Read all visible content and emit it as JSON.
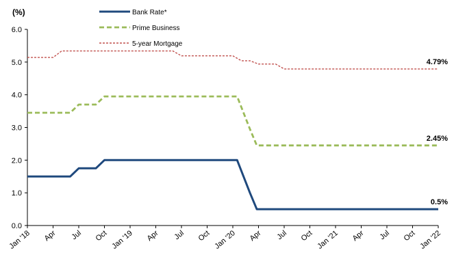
{
  "chart_data": {
    "type": "line",
    "ylabel": "(%)",
    "ylim": [
      0,
      6
    ],
    "yticks": [
      "0.0",
      "1.0",
      "2.0",
      "3.0",
      "4.0",
      "5.0",
      "6.0"
    ],
    "xlim": [
      0,
      48
    ],
    "xticks": [
      {
        "label": "Jan '18",
        "x": 0
      },
      {
        "label": "Apr",
        "x": 3
      },
      {
        "label": "Jul",
        "x": 6
      },
      {
        "label": "Oct",
        "x": 9
      },
      {
        "label": "Jan '19",
        "x": 12
      },
      {
        "label": "Apr",
        "x": 15
      },
      {
        "label": "Jul",
        "x": 18
      },
      {
        "label": "Oct",
        "x": 21
      },
      {
        "label": "Jan '20",
        "x": 24
      },
      {
        "label": "Apr",
        "x": 27
      },
      {
        "label": "Jul",
        "x": 30
      },
      {
        "label": "Oct",
        "x": 33
      },
      {
        "label": "Jan '21",
        "x": 36
      },
      {
        "label": "Apr",
        "x": 39
      },
      {
        "label": "Jul",
        "x": 42
      },
      {
        "label": "Oct",
        "x": 45
      },
      {
        "label": "Jan '22",
        "x": 48
      }
    ],
    "grid": false,
    "legend_position": "top-center",
    "series": [
      {
        "name": "Bank Rate*",
        "color": "#1f497d",
        "style": "solid",
        "end_label": "0.5%",
        "points": [
          [
            0,
            1.5
          ],
          [
            5,
            1.5
          ],
          [
            6,
            1.75
          ],
          [
            8,
            1.75
          ],
          [
            9,
            2.0
          ],
          [
            24.5,
            2.0
          ],
          [
            26,
            1.0
          ],
          [
            26.8,
            0.5
          ],
          [
            48,
            0.5
          ]
        ]
      },
      {
        "name": "Prime Business",
        "color": "#9bbb59",
        "style": "dashed",
        "end_label": "2.45%",
        "points": [
          [
            0,
            3.45
          ],
          [
            5,
            3.45
          ],
          [
            6,
            3.7
          ],
          [
            8,
            3.7
          ],
          [
            9,
            3.95
          ],
          [
            24.5,
            3.95
          ],
          [
            26,
            2.95
          ],
          [
            26.8,
            2.45
          ],
          [
            48,
            2.45
          ]
        ]
      },
      {
        "name": "5-year Mortgage",
        "color": "#c0504d",
        "style": "dotted",
        "end_label": "4.79%",
        "points": [
          [
            0,
            5.14
          ],
          [
            3,
            5.14
          ],
          [
            4,
            5.34
          ],
          [
            17,
            5.34
          ],
          [
            18,
            5.19
          ],
          [
            24,
            5.19
          ],
          [
            25,
            5.04
          ],
          [
            26,
            5.04
          ],
          [
            27,
            4.94
          ],
          [
            29,
            4.94
          ],
          [
            30,
            4.79
          ],
          [
            48,
            4.79
          ]
        ]
      }
    ]
  }
}
